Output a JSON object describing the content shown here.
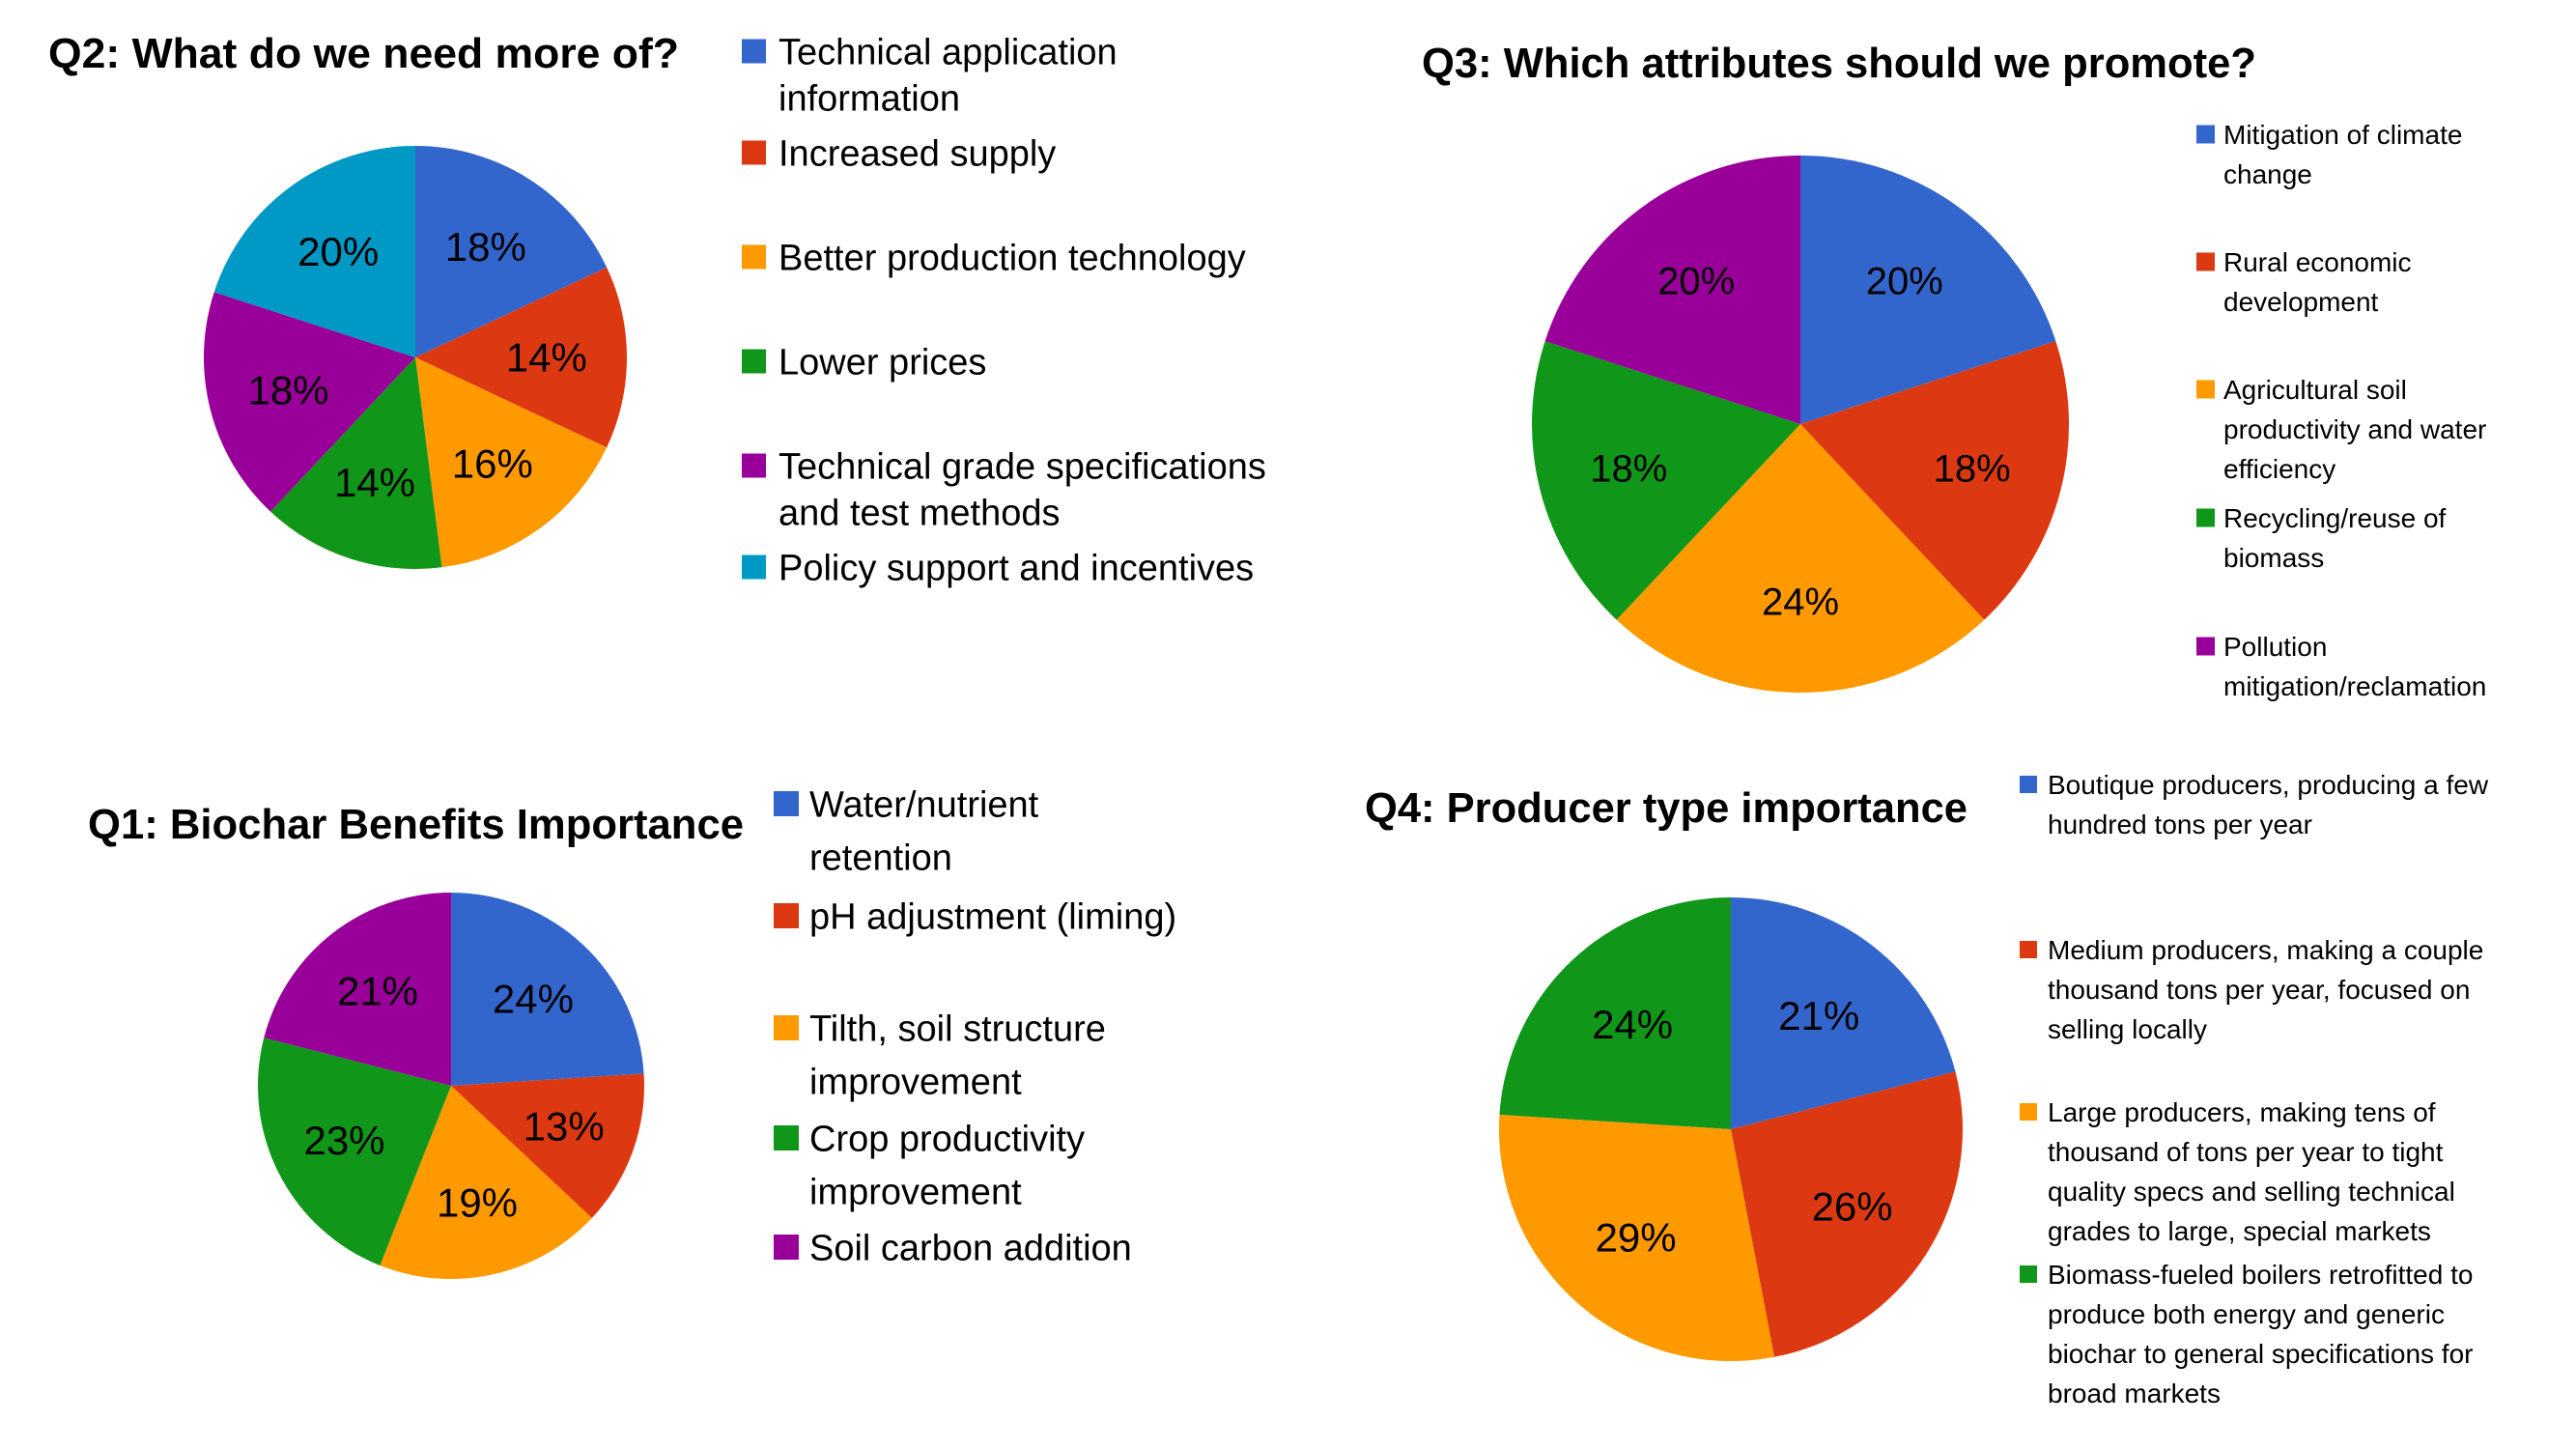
{
  "chart_data": [
    {
      "id": "q2",
      "type": "pie",
      "title": "Q2: What do we need more of?",
      "categories": [
        "Technical application information",
        "Increased supply",
        "Better production technology",
        "Lower prices",
        "Technical grade specifications and test methods",
        "Policy support and incentives"
      ],
      "legend_lines": [
        [
          "Technical application",
          "information"
        ],
        [
          "Increased supply"
        ],
        [
          "Better production technology"
        ],
        [
          "Lower prices"
        ],
        [
          "Technical grade specifications",
          "and test methods"
        ],
        [
          "Policy support and incentives"
        ]
      ],
      "values": [
        18,
        14,
        16,
        14,
        18,
        20
      ],
      "labels": [
        "18%",
        "14%",
        "16%",
        "14%",
        "18%",
        "20%"
      ],
      "colors": [
        "#3366CC",
        "#DC3912",
        "#FF9900",
        "#109618",
        "#990099",
        "#0099C6"
      ],
      "legend": "right",
      "start": "12 o'clock, clockwise"
    },
    {
      "id": "q3",
      "type": "pie",
      "title": "Q3: Which attributes should we promote?",
      "categories": [
        "Mitigation of climate change",
        "Rural economic development",
        "Agricultural soil productivity and water efficiency",
        "Recycling/reuse of biomass",
        "Pollution mitigation/reclamation"
      ],
      "legend_lines": [
        [
          "Mitigation of climate",
          "change"
        ],
        [
          "Rural economic",
          "development"
        ],
        [
          "Agricultural soil",
          "productivity and water",
          "efficiency"
        ],
        [
          "Recycling/reuse of",
          "biomass"
        ],
        [
          "Pollution",
          "mitigation/reclamation"
        ]
      ],
      "values": [
        20,
        18,
        24,
        18,
        20
      ],
      "labels": [
        "20%",
        "18%",
        "24%",
        "18%",
        "20%"
      ],
      "colors": [
        "#3366CC",
        "#DC3912",
        "#FF9900",
        "#109618",
        "#990099"
      ],
      "legend": "right",
      "start": "12 o'clock, clockwise"
    },
    {
      "id": "q1",
      "type": "pie",
      "title": "Q1: Biochar Benefits Importance",
      "categories": [
        "Water/nutrient retention",
        "pH adjustment (liming)",
        "Tilth, soil structure improvement",
        "Crop productivity improvement",
        "Soil carbon addition"
      ],
      "legend_lines": [
        [
          "Water/nutrient",
          "retention"
        ],
        [
          "pH adjustment (liming)"
        ],
        [
          "Tilth, soil structure",
          "improvement"
        ],
        [
          "Crop productivity",
          "improvement"
        ],
        [
          "Soil carbon addition"
        ]
      ],
      "values": [
        24,
        13,
        19,
        23,
        21
      ],
      "labels": [
        "24%",
        "13%",
        "19%",
        "23%",
        "21%"
      ],
      "colors": [
        "#3366CC",
        "#DC3912",
        "#FF9900",
        "#109618",
        "#990099"
      ],
      "legend": "right",
      "start": "12 o'clock, clockwise"
    },
    {
      "id": "q4",
      "type": "pie",
      "title": "Q4: Producer type importance",
      "categories": [
        "Boutique producers, producing a few hundred tons per year",
        "Medium producers, making a couple thousand tons per year, focused on selling locally",
        "Large producers, making tens of thousand of tons per year to tight quality specs and selling technical grades to large, special markets",
        "Biomass-fueled boilers retrofitted to produce both energy and generic biochar to general specifications for broad markets"
      ],
      "legend_lines": [
        [
          "Boutique producers, producing a few",
          "hundred tons per year"
        ],
        [
          "Medium producers, making a couple",
          "thousand tons per year, focused on",
          "selling locally"
        ],
        [
          "Large producers, making tens of",
          "thousand of tons per year to tight",
          "quality specs and selling technical",
          "grades to large, special markets"
        ],
        [
          "Biomass-fueled boilers retrofitted to",
          "produce both energy and generic",
          "biochar to general specifications for",
          "broad markets"
        ]
      ],
      "values": [
        21,
        26,
        29,
        24
      ],
      "labels": [
        "21%",
        "26%",
        "29%",
        "24%"
      ],
      "colors": [
        "#3366CC",
        "#DC3912",
        "#FF9900",
        "#109618"
      ],
      "legend": "right",
      "start": "12 o'clock, clockwise"
    }
  ]
}
